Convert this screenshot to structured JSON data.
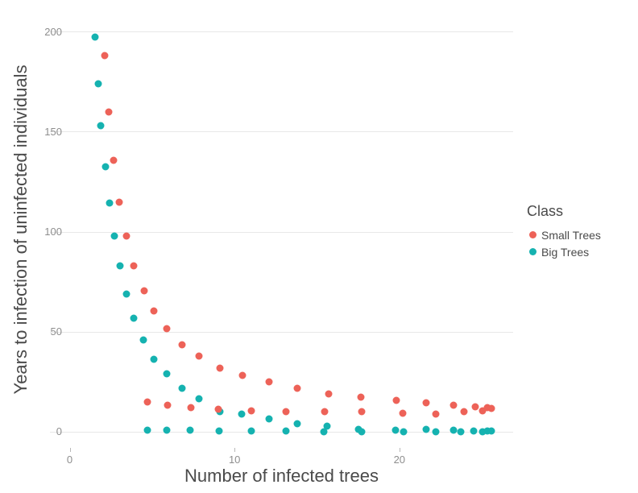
{
  "figure": {
    "background": "#ffffff",
    "grid_color": "#e8e8e8",
    "tick_label_color": "#8e8e8e",
    "axis_title_color": "#4a4a4a"
  },
  "legend": {
    "title": "Class",
    "items": [
      {
        "label": "Small Trees",
        "color": "#ed6258"
      },
      {
        "label": "Big Trees",
        "color": "#15b2b0"
      }
    ]
  },
  "chart_data": {
    "type": "scatter",
    "title": "",
    "xlabel": "Number of infected trees",
    "ylabel": "Years to infection of uninfected individuals",
    "xlim": [
      -1.2,
      26.9
    ],
    "ylim": [
      -7.5,
      203.5
    ],
    "x_ticks": [
      0,
      10,
      20
    ],
    "y_ticks": [
      0,
      50,
      100,
      150,
      200
    ],
    "grid": true,
    "legend_position": "right",
    "marker_size_px": 9,
    "series": [
      {
        "name": "Big Trees",
        "color": "#15b2b0",
        "points": [
          [
            1.55,
            197.5
          ],
          [
            1.75,
            174
          ],
          [
            1.9,
            153
          ],
          [
            2.15,
            132.5
          ],
          [
            2.4,
            114.5
          ],
          [
            2.7,
            98
          ],
          [
            3.05,
            83
          ],
          [
            3.45,
            69
          ],
          [
            3.9,
            57
          ],
          [
            4.45,
            46
          ],
          [
            5.1,
            36.5
          ],
          [
            5.9,
            29
          ],
          [
            6.8,
            21.8
          ],
          [
            7.85,
            16.8
          ],
          [
            9.1,
            10.4
          ],
          [
            10.45,
            9.2
          ],
          [
            12.1,
            6.6
          ],
          [
            13.8,
            4.3
          ],
          [
            15.6,
            3.1
          ],
          [
            17.5,
            1.4
          ],
          [
            19.75,
            1.1
          ],
          [
            21.6,
            1.2
          ],
          [
            23.3,
            1
          ],
          [
            24.5,
            0.7
          ],
          [
            25.35,
            0.4
          ],
          [
            25.6,
            0.4
          ],
          [
            4.7,
            0.9
          ],
          [
            5.9,
            0.8
          ],
          [
            7.3,
            0.8
          ],
          [
            9.05,
            0.7
          ],
          [
            11,
            0.6
          ],
          [
            13.1,
            0.4
          ],
          [
            15.4,
            0.2
          ],
          [
            17.7,
            0.1
          ],
          [
            20.25,
            0.3
          ],
          [
            22.2,
            0.1
          ],
          [
            23.7,
            0.3
          ],
          [
            25.05,
            0.2
          ]
        ]
      },
      {
        "name": "Small Trees",
        "color": "#ed6258",
        "points": [
          [
            2.1,
            188
          ],
          [
            2.35,
            160
          ],
          [
            2.65,
            136
          ],
          [
            3,
            115
          ],
          [
            3.45,
            98
          ],
          [
            3.9,
            83
          ],
          [
            4.5,
            70.5
          ],
          [
            5.1,
            60.5
          ],
          [
            5.9,
            51.5
          ],
          [
            6.8,
            43.5
          ],
          [
            7.85,
            38
          ],
          [
            9.1,
            32
          ],
          [
            10.5,
            28.5
          ],
          [
            12.1,
            25
          ],
          [
            13.8,
            22
          ],
          [
            15.7,
            19.2
          ],
          [
            17.65,
            17.5
          ],
          [
            19.8,
            15.8
          ],
          [
            21.6,
            14.7
          ],
          [
            23.3,
            13.4
          ],
          [
            24.6,
            12.5
          ],
          [
            25.35,
            12.1
          ],
          [
            25.6,
            11.7
          ],
          [
            4.7,
            15.2
          ],
          [
            5.95,
            13.5
          ],
          [
            7.35,
            12.3
          ],
          [
            9,
            11.6
          ],
          [
            11,
            10.8
          ],
          [
            13.1,
            10.4
          ],
          [
            15.45,
            10.4
          ],
          [
            17.7,
            10.4
          ],
          [
            20.2,
            9.4
          ],
          [
            22.2,
            9.1
          ],
          [
            23.9,
            10.1
          ],
          [
            25.05,
            10.6
          ]
        ]
      }
    ]
  }
}
